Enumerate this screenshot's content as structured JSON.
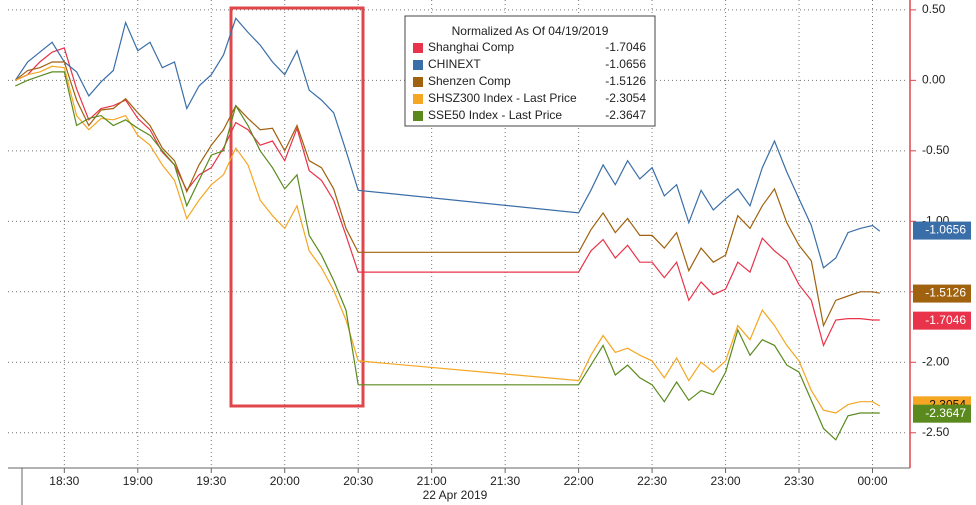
{
  "chart_data": {
    "type": "line",
    "xlabel": "22 Apr 2019",
    "legend_title": "Normalized As Of 04/19/2019",
    "grid": true,
    "xlim": [
      7,
      374.5
    ],
    "ylim": [
      -2.75,
      0.57
    ],
    "xticks": [
      {
        "value": 30,
        "label": "18:30"
      },
      {
        "value": 60,
        "label": "19:00"
      },
      {
        "value": 90,
        "label": "19:30"
      },
      {
        "value": 120,
        "label": "20:00"
      },
      {
        "value": 150,
        "label": "20:30"
      },
      {
        "value": 180,
        "label": "21:00"
      },
      {
        "value": 210,
        "label": "21:30"
      },
      {
        "value": 240,
        "label": "22:00"
      },
      {
        "value": 270,
        "label": "22:30"
      },
      {
        "value": 300,
        "label": "23:00"
      },
      {
        "value": 330,
        "label": "23:30"
      },
      {
        "value": 360,
        "label": "00:00"
      }
    ],
    "yticks": [
      {
        "value": 0.5,
        "label": "0.50"
      },
      {
        "value": 0,
        "label": "0.00"
      },
      {
        "value": -0.5,
        "label": "-0.50"
      },
      {
        "value": -1,
        "label": "-1.00"
      },
      {
        "value": -1.5,
        "label": "-1.50"
      },
      {
        "value": -2,
        "label": "-2.00"
      },
      {
        "value": -2.5,
        "label": "-2.50"
      }
    ],
    "x": [
      10,
      15,
      20,
      25,
      30,
      35,
      40,
      45,
      50,
      55,
      60,
      65,
      70,
      75,
      80,
      85,
      90,
      95,
      100,
      105,
      110,
      115,
      120,
      125,
      130,
      135,
      140,
      145,
      150,
      240,
      245,
      250,
      255,
      260,
      265,
      270,
      275,
      280,
      285,
      290,
      295,
      300,
      305,
      310,
      315,
      320,
      325,
      330,
      335,
      340,
      345,
      350,
      355,
      360,
      363
    ],
    "series": [
      {
        "name": "Shanghai Comp",
        "color": "#e8334a",
        "last_price": -1.7046,
        "values": [
          0.0,
          0.04,
          0.13,
          0.2,
          0.23,
          -0.06,
          -0.28,
          -0.2,
          -0.18,
          -0.14,
          -0.27,
          -0.35,
          -0.51,
          -0.6,
          -0.78,
          -0.67,
          -0.62,
          -0.48,
          -0.3,
          -0.35,
          -0.46,
          -0.43,
          -0.57,
          -0.34,
          -0.64,
          -0.71,
          -0.85,
          -1.1,
          -1.36,
          -1.36,
          -1.21,
          -1.13,
          -1.26,
          -1.17,
          -1.29,
          -1.29,
          -1.4,
          -1.29,
          -1.56,
          -1.43,
          -1.52,
          -1.48,
          -1.29,
          -1.36,
          -1.12,
          -1.21,
          -1.28,
          -1.45,
          -1.56,
          -1.88,
          -1.7,
          -1.69,
          -1.69,
          -1.7,
          -1.7
        ]
      },
      {
        "name": "CHINEXT",
        "color": "#3a6ea8",
        "last_price": -1.0656,
        "values": [
          0.0,
          0.13,
          0.2,
          0.27,
          0.13,
          0.06,
          -0.11,
          -0.01,
          0.07,
          0.41,
          0.21,
          0.27,
          0.09,
          0.13,
          -0.2,
          -0.04,
          0.04,
          0.18,
          0.44,
          0.34,
          0.25,
          0.13,
          0.04,
          0.21,
          -0.07,
          -0.14,
          -0.23,
          -0.5,
          -0.78,
          -0.94,
          -0.78,
          -0.6,
          -0.74,
          -0.57,
          -0.7,
          -0.62,
          -0.82,
          -0.74,
          -1.01,
          -0.78,
          -0.92,
          -0.84,
          -0.77,
          -0.89,
          -0.62,
          -0.43,
          -0.65,
          -0.84,
          -1.03,
          -1.33,
          -1.26,
          -1.08,
          -1.05,
          -1.03,
          -1.07
        ]
      },
      {
        "name": "Shenzen Comp",
        "color": "#a0620e",
        "last_price": -1.5126,
        "values": [
          0.0,
          0.07,
          0.09,
          0.13,
          0.13,
          -0.14,
          -0.32,
          -0.21,
          -0.2,
          -0.13,
          -0.23,
          -0.32,
          -0.48,
          -0.57,
          -0.79,
          -0.6,
          -0.46,
          -0.35,
          -0.18,
          -0.27,
          -0.35,
          -0.34,
          -0.5,
          -0.32,
          -0.57,
          -0.62,
          -0.77,
          -1.05,
          -1.22,
          -1.22,
          -1.06,
          -0.94,
          -1.08,
          -0.98,
          -1.1,
          -1.1,
          -1.19,
          -1.08,
          -1.35,
          -1.19,
          -1.29,
          -1.24,
          -0.96,
          -1.05,
          -0.89,
          -0.77,
          -1.01,
          -1.17,
          -1.28,
          -1.74,
          -1.56,
          -1.53,
          -1.5,
          -1.5,
          -1.51
        ]
      },
      {
        "name": "SHSZ300 Index - Last Price",
        "color": "#f5a623",
        "last_price": -2.3054,
        "values": [
          0.0,
          0.04,
          0.06,
          0.1,
          0.09,
          -0.25,
          -0.35,
          -0.27,
          -0.28,
          -0.25,
          -0.39,
          -0.46,
          -0.6,
          -0.71,
          -0.98,
          -0.85,
          -0.74,
          -0.67,
          -0.48,
          -0.6,
          -0.85,
          -0.96,
          -1.05,
          -0.89,
          -1.21,
          -1.33,
          -1.49,
          -1.7,
          -1.99,
          -2.13,
          -1.95,
          -1.81,
          -1.93,
          -1.9,
          -1.95,
          -1.99,
          -2.11,
          -1.97,
          -2.13,
          -2.0,
          -2.07,
          -1.99,
          -1.74,
          -1.84,
          -1.63,
          -1.74,
          -1.88,
          -1.99,
          -2.2,
          -2.34,
          -2.36,
          -2.3,
          -2.28,
          -2.28,
          -2.31
        ]
      },
      {
        "name": "SSE50 Index - Last Price",
        "color": "#5a8a1e",
        "last_price": -2.3647,
        "values": [
          -0.04,
          0.0,
          0.03,
          0.06,
          0.06,
          -0.32,
          -0.27,
          -0.25,
          -0.32,
          -0.28,
          -0.34,
          -0.39,
          -0.5,
          -0.6,
          -0.89,
          -0.71,
          -0.53,
          -0.5,
          -0.18,
          -0.32,
          -0.5,
          -0.62,
          -0.77,
          -0.67,
          -1.1,
          -1.24,
          -1.42,
          -1.63,
          -2.16,
          -2.16,
          -2.02,
          -1.88,
          -2.09,
          -2.02,
          -2.11,
          -2.16,
          -2.28,
          -2.14,
          -2.27,
          -2.2,
          -2.23,
          -2.07,
          -1.77,
          -1.95,
          -1.84,
          -1.88,
          -2.02,
          -2.07,
          -2.27,
          -2.47,
          -2.55,
          -2.38,
          -2.36,
          -2.36,
          -2.36
        ]
      }
    ]
  }
}
